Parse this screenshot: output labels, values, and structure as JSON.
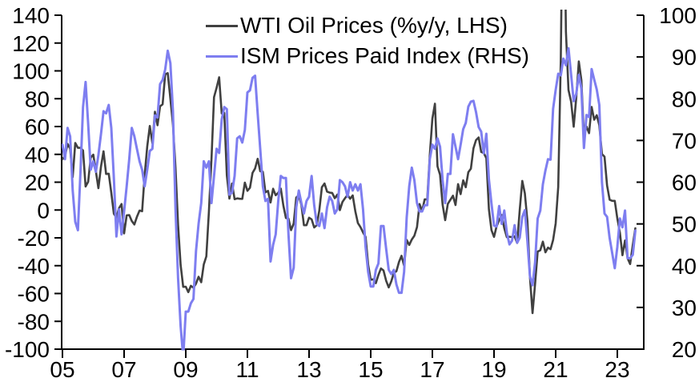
{
  "chart_data": {
    "type": "line",
    "title": "",
    "background": "#ffffff",
    "axis_color": "#000000",
    "grid": false,
    "legend_position": "top-center",
    "legend": [
      {
        "label": "WTI Oil Prices (%y/y, LHS)",
        "color": "#404040"
      },
      {
        "label": "ISM Prices Paid Index (RHS)",
        "color": "#7e7ef0"
      }
    ],
    "x_axis": {
      "frequency": "monthly",
      "start": "2005-01",
      "end": "2023-08",
      "tick_labels": [
        "05",
        "07",
        "09",
        "11",
        "13",
        "15",
        "17",
        "19",
        "21",
        "23"
      ],
      "tick_years": [
        2005,
        2007,
        2009,
        2011,
        2013,
        2015,
        2017,
        2019,
        2021,
        2023
      ]
    },
    "left_axis": {
      "min": -100,
      "max": 140,
      "tick_step": 20,
      "tick_labels": [
        "140",
        "120",
        "100",
        "80",
        "60",
        "40",
        "20",
        "0",
        "-20",
        "-40",
        "-60",
        "-80",
        "-100"
      ]
    },
    "right_axis": {
      "min": 20,
      "max": 100,
      "tick_step": 10,
      "tick_labels": [
        "100",
        "90",
        "80",
        "70",
        "60",
        "50",
        "40",
        "30",
        "20"
      ]
    },
    "series": [
      {
        "name": "WTI Oil Prices (%y/y, LHS)",
        "axis": "left",
        "color": "#404040",
        "values": [
          36.5,
          38.8,
          47.5,
          44.2,
          23.7,
          48.2,
          44.7,
          44.7,
          42.8,
          16.9,
          20.3,
          37.7,
          39.8,
          28.0,
          15.7,
          31.1,
          42.2,
          25.9,
          26.1,
          12.4,
          -2.7,
          -5.4,
          1.3,
          4.3,
          -16.8,
          -3.8,
          -3.6,
          -7.9,
          -10.4,
          -4.9,
          -0.4,
          -0.9,
          25.3,
          45.7,
          60.4,
          48.0,
          70.6,
          60.9,
          74.5,
          76.0,
          97.6,
          98.4,
          79.9,
          61.2,
          30.3,
          -10.7,
          -39.5,
          -55.2,
          -55.1,
          -59.0,
          -54.5,
          -55.9,
          -52.9,
          -48.0,
          -51.9,
          -39.1,
          -33.3,
          -1.2,
          36.1,
          81.1,
          87.8,
          95.4,
          69.4,
          69.8,
          24.9,
          8.2,
          19.0,
          7.8,
          8.4,
          8.1,
          8.0,
          19.7,
          13.8,
          16.0,
          26.7,
          29.9,
          36.8,
          27.8,
          27.5,
          12.7,
          13.7,
          5.4,
          15.3,
          10.6,
          12.4,
          15.4,
          3.2,
          -5.7,
          -6.2,
          -14.5,
          -9.7,
          9.0,
          10.5,
          3.7,
          -10.9,
          -10.9,
          -5.5,
          -6.7,
          -12.5,
          -10.9,
          -0.2,
          16.4,
          19.1,
          13.2,
          12.5,
          12.3,
          8.5,
          11.1,
          -0.1,
          5.8,
          8.5,
          10.9,
          8.1,
          10.5,
          -1.0,
          -9.4,
          -12.3,
          -16.1,
          -19.3,
          -39.3,
          -50.1,
          -49.8,
          -52.6,
          -46.7,
          -42.0,
          -43.5,
          -50.9,
          -55.6,
          -51.2,
          -45.2,
          -44.0,
          -37.3,
          -32.9,
          -40.1,
          -21.5,
          -25.1,
          -21.2,
          -18.5,
          -12.3,
          4.3,
          -0.7,
          7.7,
          7.6,
          39.7,
          65.7,
          76.4,
          31.4,
          25.3,
          3.8,
          -7.3,
          4.4,
          7.4,
          10.3,
          3.6,
          18.6,
          11.4,
          21.3,
          16.4,
          27.2,
          29.7,
          44.3,
          50.2,
          52.2,
          41.7,
          41.0,
          37.2,
          0.6,
          -14.4,
          -19.3,
          -11.7,
          -7.3,
          -3.6,
          -13.1,
          -19.5,
          -19.2,
          -19.5,
          -18.9,
          -23.7,
          0.1,
          20.9,
          12.0,
          -8.0,
          -48.6,
          -74.1,
          -53.0,
          -29.9,
          -28.9,
          -22.7,
          -30.4,
          -27.0,
          -28.2,
          -21.5,
          -9.6,
          16.8,
          108.6,
          273.0,
          128.2,
          86.3,
          77.8,
          59.9,
          80.8,
          106.8,
          93.3,
          52.5,
          60.0,
          55.2,
          74.1,
          64.9,
          68.1,
          60.9,
          40.2,
          38.3,
          17.6,
          7.4,
          6.6,
          6.6,
          -6.1,
          -16.2,
          -32.5,
          -21.9,
          -34.7,
          -38.8,
          -25.1,
          -13.1
        ]
      },
      {
        "name": "ISM Prices Paid Index (RHS)",
        "axis": "right",
        "color": "#7e7ef0",
        "values": [
          69,
          65.5,
          73,
          71,
          58,
          50.5,
          48.5,
          62.5,
          78,
          84,
          74,
          63,
          65,
          62.5,
          66.5,
          71.5,
          77,
          76.5,
          78.5,
          73,
          61,
          47,
          53.5,
          47.5,
          53,
          59,
          65.5,
          73,
          71,
          68,
          65,
          63,
          59,
          63,
          67.5,
          68,
          76,
          75.5,
          83.5,
          84.5,
          87,
          91.5,
          88.5,
          77,
          53.5,
          37,
          25.5,
          18,
          29,
          29,
          31,
          32,
          43.5,
          50,
          55,
          65,
          63.5,
          65,
          55,
          61.5,
          68,
          67,
          75,
          78,
          77.5,
          57,
          57.5,
          61.5,
          70.5,
          71,
          69.5,
          72.5,
          81.5,
          82,
          85,
          85.5,
          76.5,
          68,
          59,
          55.5,
          56,
          41,
          45,
          47.5,
          55.5,
          61.5,
          61,
          61,
          47.5,
          37,
          39.5,
          54,
          58,
          55,
          52.5,
          55.5,
          56.5,
          61.5,
          54.5,
          50,
          49.5,
          52.5,
          49,
          54,
          56.5,
          55.5,
          52.5,
          53.5,
          60.5,
          60,
          59,
          56.5,
          60,
          58,
          59.5,
          58,
          59.5,
          53.5,
          44.5,
          38.5,
          35,
          35,
          39,
          40.5,
          49.5,
          49.5,
          44,
          39,
          38,
          39,
          35.5,
          33.5,
          33.5,
          38.5,
          51.5,
          59,
          63.5,
          60.5,
          55,
          53,
          53,
          54.5,
          54.5,
          65.5,
          69,
          68,
          70.5,
          68.5,
          60.5,
          55,
          62,
          62,
          71.5,
          68.5,
          65.5,
          69,
          72.7,
          74.2,
          78.1,
          79.3,
          79.5,
          76.8,
          73.2,
          72.1,
          66.9,
          71.6,
          60.7,
          54.9,
          49.6,
          49.4,
          54.3,
          50,
          53.2,
          47.9,
          45.1,
          46,
          49.7,
          45.5,
          46.7,
          51.7,
          53.3,
          45.9,
          37.4,
          35.3,
          40.8,
          51.3,
          53.2,
          59.5,
          62.8,
          65.5,
          65.4,
          77.6,
          82.1,
          86,
          85.6,
          89.6,
          88,
          92.1,
          85.7,
          79.4,
          81.2,
          85.7,
          82.4,
          68.2,
          76.1,
          75.6,
          87.1,
          84.6,
          82.2,
          78.5,
          60,
          52.5,
          51.7,
          46.6,
          43,
          39.4,
          44.5,
          51.3,
          49.2,
          53.2,
          41.8,
          41.8,
          42.6,
          48.4
        ]
      }
    ]
  }
}
